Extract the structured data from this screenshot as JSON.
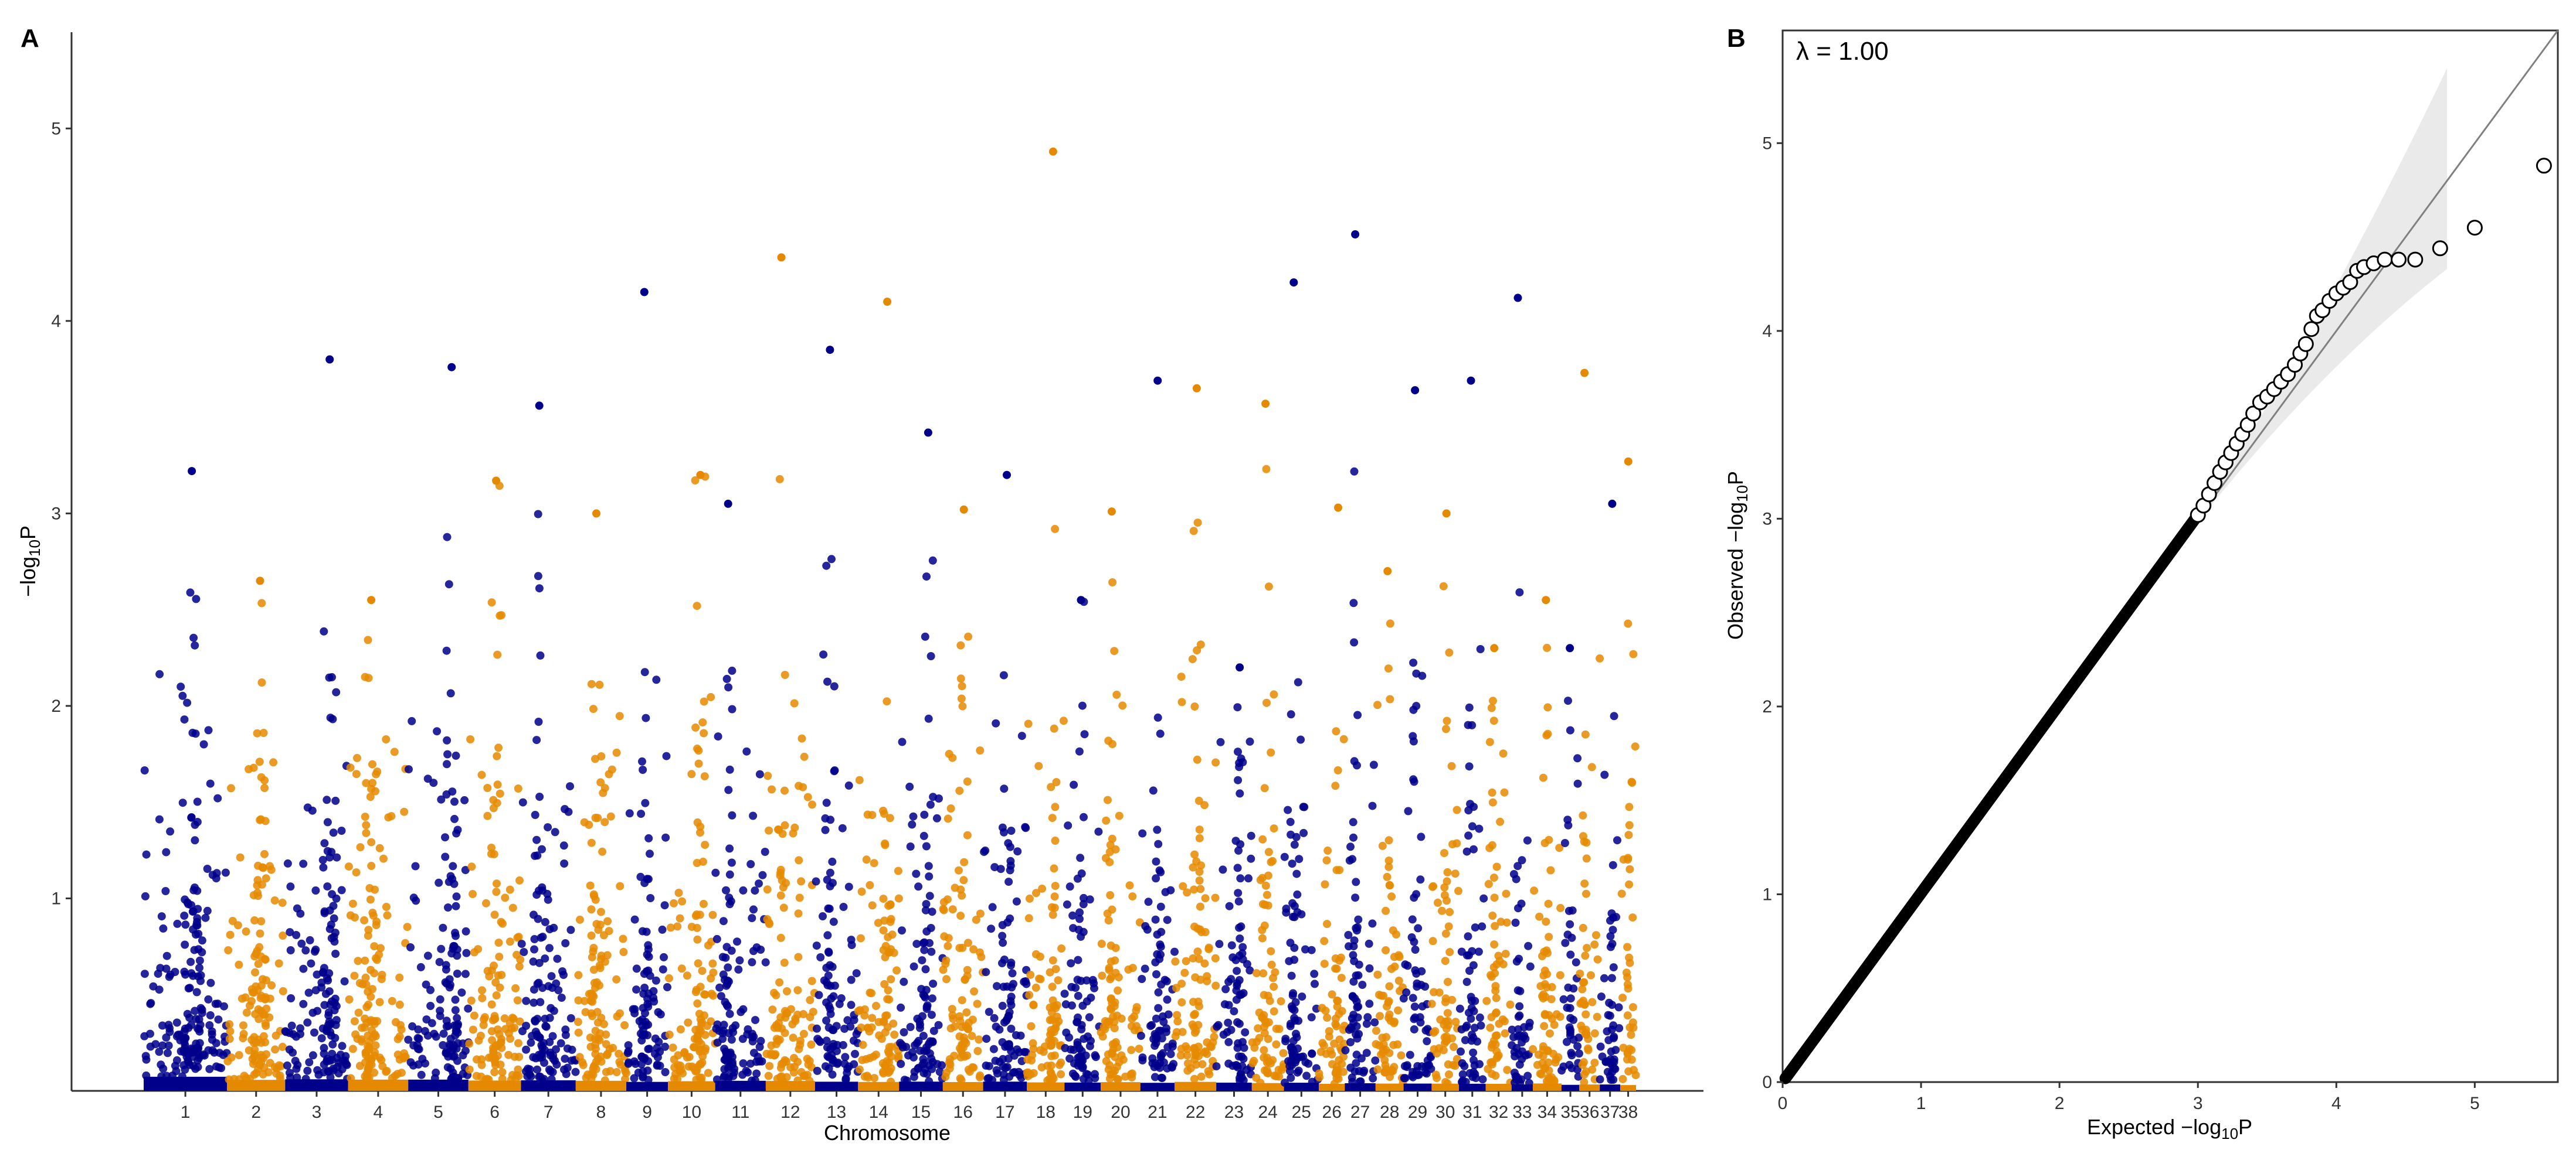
{
  "chart_data": [
    {
      "panel_label": "A",
      "type": "scatter",
      "subtype": "manhattan",
      "title": "",
      "xlabel": "Chromosome",
      "ylabel_base": "−log",
      "ylabel_sub": "10",
      "ylabel_tail": "P",
      "ylim": [
        0,
        5.5
      ],
      "yticks": [
        1,
        2,
        3,
        4,
        5
      ],
      "grid": false,
      "legend": "none",
      "colors": [
        "#00008B",
        "#E58A00"
      ],
      "chromosomes": [
        {
          "name": "1",
          "width": 122,
          "top": 3.22
        },
        {
          "name": "2",
          "width": 85,
          "top": 2.65
        },
        {
          "name": "3",
          "width": 92,
          "top": 3.8
        },
        {
          "name": "4",
          "width": 88,
          "top": 2.55
        },
        {
          "name": "5",
          "width": 88,
          "top": 3.76
        },
        {
          "name": "6",
          "width": 77,
          "top": 3.17
        },
        {
          "name": "7",
          "width": 80,
          "top": 3.56
        },
        {
          "name": "8",
          "width": 74,
          "top": 3.0
        },
        {
          "name": "9",
          "width": 61,
          "top": 4.15
        },
        {
          "name": "10",
          "width": 69,
          "top": 3.2
        },
        {
          "name": "11",
          "width": 74,
          "top": 3.05
        },
        {
          "name": "12",
          "width": 72,
          "top": 4.33
        },
        {
          "name": "13",
          "width": 63,
          "top": 3.85
        },
        {
          "name": "14",
          "width": 60,
          "top": 4.1
        },
        {
          "name": "15",
          "width": 64,
          "top": 3.42
        },
        {
          "name": "16",
          "width": 59,
          "top": 3.02
        },
        {
          "name": "17",
          "width": 64,
          "top": 3.2
        },
        {
          "name": "18",
          "width": 55,
          "top": 4.88
        },
        {
          "name": "19",
          "width": 53,
          "top": 2.55
        },
        {
          "name": "20",
          "width": 58,
          "top": 3.01
        },
        {
          "name": "21",
          "width": 50,
          "top": 3.69
        },
        {
          "name": "22",
          "width": 61,
          "top": 3.65
        },
        {
          "name": "23",
          "width": 52,
          "top": 2.2
        },
        {
          "name": "24",
          "width": 47,
          "top": 3.57
        },
        {
          "name": "25",
          "width": 51,
          "top": 4.2
        },
        {
          "name": "26",
          "width": 38,
          "top": 3.03
        },
        {
          "name": "27",
          "width": 45,
          "top": 4.45
        },
        {
          "name": "28",
          "width": 41,
          "top": 2.7
        },
        {
          "name": "29",
          "width": 41,
          "top": 3.64
        },
        {
          "name": "30",
          "width": 40,
          "top": 3.0
        },
        {
          "name": "31",
          "width": 39,
          "top": 3.69
        },
        {
          "name": "32",
          "width": 38,
          "top": 2.3
        },
        {
          "name": "33",
          "width": 31,
          "top": 4.12
        },
        {
          "name": "34",
          "width": 42,
          "top": 2.55
        },
        {
          "name": "35",
          "width": 26,
          "top": 2.3
        },
        {
          "name": "36",
          "width": 30,
          "top": 3.73
        },
        {
          "name": "37",
          "width": 30,
          "top": 3.05
        },
        {
          "name": "38",
          "width": 23,
          "top": 3.27
        }
      ]
    },
    {
      "panel_label": "B",
      "type": "scatter",
      "subtype": "qq",
      "title": "",
      "annotation": "λ = 1.00",
      "xlabel_base": "Expected −log",
      "xlabel_sub": "10",
      "xlabel_tail": "P",
      "ylabel_base": "Observed −log",
      "ylabel_sub": "10",
      "ylabel_tail": "P",
      "xlim": [
        0,
        5.6
      ],
      "ylim": [
        0,
        5.6
      ],
      "xticks": [
        0,
        1,
        2,
        3,
        4,
        5
      ],
      "yticks": [
        0,
        1,
        2,
        3,
        4,
        5
      ],
      "grid": false,
      "legend": "none",
      "tail_points": [
        {
          "x": 3.0,
          "y": 3.02
        },
        {
          "x": 3.04,
          "y": 3.07
        },
        {
          "x": 3.08,
          "y": 3.13
        },
        {
          "x": 3.12,
          "y": 3.19
        },
        {
          "x": 3.16,
          "y": 3.25
        },
        {
          "x": 3.2,
          "y": 3.3
        },
        {
          "x": 3.24,
          "y": 3.35
        },
        {
          "x": 3.28,
          "y": 3.4
        },
        {
          "x": 3.32,
          "y": 3.45
        },
        {
          "x": 3.36,
          "y": 3.5
        },
        {
          "x": 3.4,
          "y": 3.56
        },
        {
          "x": 3.45,
          "y": 3.62
        },
        {
          "x": 3.5,
          "y": 3.65
        },
        {
          "x": 3.55,
          "y": 3.69
        },
        {
          "x": 3.6,
          "y": 3.73
        },
        {
          "x": 3.65,
          "y": 3.77
        },
        {
          "x": 3.7,
          "y": 3.82
        },
        {
          "x": 3.74,
          "y": 3.88
        },
        {
          "x": 3.78,
          "y": 3.93
        },
        {
          "x": 3.82,
          "y": 4.01
        },
        {
          "x": 3.86,
          "y": 4.08
        },
        {
          "x": 3.9,
          "y": 4.11
        },
        {
          "x": 3.95,
          "y": 4.16
        },
        {
          "x": 4.0,
          "y": 4.2
        },
        {
          "x": 4.05,
          "y": 4.23
        },
        {
          "x": 4.1,
          "y": 4.26
        },
        {
          "x": 4.15,
          "y": 4.32
        },
        {
          "x": 4.2,
          "y": 4.34
        },
        {
          "x": 4.27,
          "y": 4.36
        },
        {
          "x": 4.35,
          "y": 4.38
        },
        {
          "x": 4.45,
          "y": 4.38
        },
        {
          "x": 4.57,
          "y": 4.38
        },
        {
          "x": 4.75,
          "y": 4.44
        },
        {
          "x": 5.0,
          "y": 4.55
        },
        {
          "x": 5.5,
          "y": 4.88
        }
      ],
      "confidence_band_top_at_xmax": 5.4,
      "confidence_band_bottom_at_xmax": 4.33,
      "band_xmax": 4.8
    }
  ]
}
